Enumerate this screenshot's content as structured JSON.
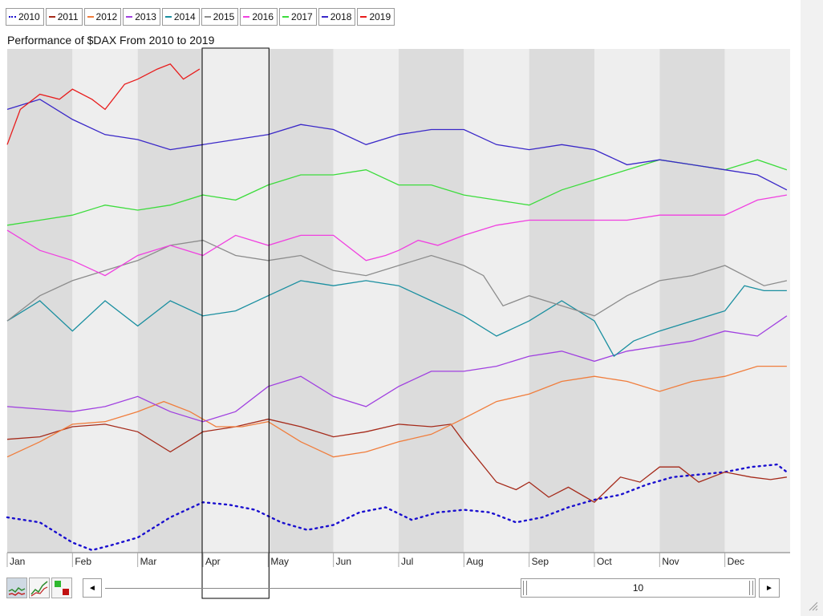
{
  "legend": [
    {
      "label": "2010",
      "color": "#1a0fcf",
      "style": "dotted"
    },
    {
      "label": "2011",
      "color": "#a52a1a",
      "style": "solid"
    },
    {
      "label": "2012",
      "color": "#f07d3c",
      "style": "solid"
    },
    {
      "label": "2013",
      "color": "#a040e0",
      "style": "solid"
    },
    {
      "label": "2014",
      "color": "#1a8fa0",
      "style": "solid"
    },
    {
      "label": "2015",
      "color": "#8c8c8c",
      "style": "solid"
    },
    {
      "label": "2016",
      "color": "#f040e0",
      "style": "solid"
    },
    {
      "label": "2017",
      "color": "#3cdc3c",
      "style": "solid"
    },
    {
      "label": "2018",
      "color": "#3a28c8",
      "style": "solid"
    },
    {
      "label": "2019",
      "color": "#e81c1c",
      "style": "solid"
    }
  ],
  "chart_data": {
    "type": "line",
    "title": "Performance of $DAX From 2010 to 2019",
    "xlabel": "",
    "ylabel": "",
    "x_ticks": [
      "Jan",
      "Feb",
      "Mar",
      "Apr",
      "May",
      "Jun",
      "Jul",
      "Aug",
      "Sep",
      "Oct",
      "Nov",
      "Dec"
    ],
    "x_range": [
      0,
      12
    ],
    "y_range": [
      0,
      100
    ],
    "grid": false,
    "legend_position": "top-left",
    "highlight_month": "Apr",
    "series": [
      {
        "name": "2010",
        "color": "#1a0fcf",
        "dotted": true,
        "x": [
          0,
          0.5,
          1,
          1.3,
          1.6,
          2,
          2.5,
          3,
          3.4,
          3.8,
          4.2,
          4.6,
          5,
          5.4,
          5.8,
          6.2,
          6.6,
          7,
          7.4,
          7.8,
          8.2,
          8.6,
          9,
          9.4,
          9.8,
          10.2,
          10.6,
          11,
          11.4,
          11.8,
          11.95
        ],
        "y": [
          7,
          6,
          2,
          0.5,
          1.5,
          3,
          7,
          10,
          9.5,
          8.5,
          6,
          4.5,
          5.5,
          8,
          9,
          6.5,
          8,
          8.5,
          8,
          6,
          7,
          9,
          10.5,
          11.5,
          13.5,
          15,
          15.5,
          16,
          17,
          17.5,
          16
        ]
      },
      {
        "name": "2011",
        "color": "#a52a1a",
        "x": [
          0,
          0.5,
          1,
          1.5,
          2,
          2.5,
          3,
          3.5,
          4,
          4.5,
          5,
          5.5,
          6,
          6.5,
          6.8,
          7,
          7.5,
          7.8,
          8,
          8.3,
          8.6,
          9,
          9.4,
          9.7,
          10,
          10.3,
          10.6,
          11,
          11.4,
          11.7,
          11.95
        ],
        "y": [
          22.5,
          23,
          25,
          25.5,
          24,
          20,
          24,
          25,
          26.5,
          25,
          23,
          24,
          25.5,
          25,
          25.5,
          22,
          14,
          12.5,
          14,
          11,
          13,
          10,
          15,
          14,
          17,
          17,
          14,
          16,
          15,
          14.5,
          15
        ]
      },
      {
        "name": "2012",
        "color": "#f07d3c",
        "x": [
          0,
          0.5,
          1,
          1.5,
          2,
          2.4,
          2.8,
          3.2,
          3.6,
          4,
          4.5,
          5,
          5.5,
          6,
          6.5,
          6.9,
          7.2,
          7.5,
          8,
          8.5,
          9,
          9.5,
          10,
          10.5,
          11,
          11.5,
          11.95
        ],
        "y": [
          19,
          22,
          25.5,
          26,
          28,
          30,
          28,
          25,
          25,
          26,
          22,
          19,
          20,
          22,
          23.5,
          26,
          28,
          30,
          31.5,
          34,
          35,
          34,
          32,
          34,
          35,
          37,
          37
        ]
      },
      {
        "name": "2013",
        "color": "#a040e0",
        "x": [
          0,
          0.5,
          1,
          1.5,
          2,
          2.5,
          3,
          3.5,
          4,
          4.5,
          5,
          5.5,
          6,
          6.5,
          7,
          7.5,
          8,
          8.5,
          9,
          9.5,
          10,
          10.5,
          11,
          11.5,
          11.95
        ],
        "y": [
          29,
          28.5,
          28,
          29,
          31,
          28,
          26,
          28,
          33,
          35,
          31,
          29,
          33,
          36,
          36,
          37,
          39,
          40,
          38,
          40,
          41,
          42,
          44,
          43,
          47
        ]
      },
      {
        "name": "2014",
        "color": "#1a8fa0",
        "x": [
          0,
          0.5,
          1,
          1.5,
          2,
          2.5,
          3,
          3.5,
          4,
          4.5,
          5,
          5.5,
          6,
          6.5,
          7,
          7.5,
          8,
          8.5,
          9,
          9.3,
          9.6,
          10,
          10.5,
          11,
          11.3,
          11.6,
          11.95
        ],
        "y": [
          46,
          50,
          44,
          50,
          45,
          50,
          47,
          48,
          51,
          54,
          53,
          54,
          53,
          50,
          47,
          43,
          46,
          50,
          46,
          39,
          42,
          44,
          46,
          48,
          53,
          52,
          52
        ]
      },
      {
        "name": "2015",
        "color": "#8c8c8c",
        "x": [
          0,
          0.5,
          1,
          1.5,
          2,
          2.5,
          3,
          3.5,
          4,
          4.5,
          5,
          5.5,
          6,
          6.5,
          7,
          7.3,
          7.6,
          8,
          8.5,
          9,
          9.5,
          10,
          10.5,
          11,
          11.3,
          11.6,
          11.95
        ],
        "y": [
          46,
          51,
          54,
          56,
          58,
          61,
          62,
          59,
          58,
          59,
          56,
          55,
          57,
          59,
          57,
          55,
          49,
          51,
          49,
          47,
          51,
          54,
          55,
          57,
          55,
          53,
          54
        ]
      },
      {
        "name": "2016",
        "color": "#f040e0",
        "x": [
          0,
          0.5,
          1,
          1.5,
          2,
          2.5,
          3,
          3.5,
          4,
          4.5,
          5,
          5.5,
          5.8,
          6,
          6.3,
          6.6,
          7,
          7.5,
          8,
          8.5,
          9,
          9.5,
          10,
          10.5,
          11,
          11.5,
          11.95
        ],
        "y": [
          64,
          60,
          58,
          55,
          59,
          61,
          59,
          63,
          61,
          63,
          63,
          58,
          59,
          60,
          62,
          61,
          63,
          65,
          66,
          66,
          66,
          66,
          67,
          67,
          67,
          70,
          71
        ]
      },
      {
        "name": "2017",
        "color": "#3cdc3c",
        "x": [
          0,
          0.5,
          1,
          1.5,
          2,
          2.5,
          3,
          3.5,
          4,
          4.5,
          5,
          5.5,
          6,
          6.5,
          7,
          7.5,
          8,
          8.5,
          9,
          9.5,
          10,
          10.5,
          11,
          11.5,
          11.95
        ],
        "y": [
          65,
          66,
          67,
          69,
          68,
          69,
          71,
          70,
          73,
          75,
          75,
          76,
          73,
          73,
          71,
          70,
          69,
          72,
          74,
          76,
          78,
          77,
          76,
          78,
          76
        ]
      },
      {
        "name": "2018",
        "color": "#3a28c8",
        "x": [
          0,
          0.5,
          1,
          1.5,
          2,
          2.5,
          3,
          3.5,
          4,
          4.5,
          5,
          5.5,
          6,
          6.5,
          7,
          7.5,
          8,
          8.5,
          9,
          9.5,
          10,
          10.5,
          11,
          11.5,
          11.95
        ],
        "y": [
          88,
          90,
          86,
          83,
          82,
          80,
          81,
          82,
          83,
          85,
          84,
          81,
          83,
          84,
          84,
          81,
          80,
          81,
          80,
          77,
          78,
          77,
          76,
          75,
          72
        ]
      },
      {
        "name": "2019",
        "color": "#e81c1c",
        "x": [
          0,
          0.2,
          0.5,
          0.8,
          1,
          1.3,
          1.5,
          1.8,
          2,
          2.3,
          2.5,
          2.7,
          2.95
        ],
        "y": [
          81,
          88,
          91,
          90,
          92,
          90,
          88,
          93,
          94,
          96,
          97,
          94,
          96
        ]
      }
    ]
  },
  "toolbar": {
    "chart_type_icon": "line-chart-icon",
    "perf_icon": "performance-icon",
    "colors_icon": "color-blocks-icon"
  },
  "scroll": {
    "left_arrow": "◄",
    "right_arrow": "►",
    "thumb_label": "10"
  }
}
